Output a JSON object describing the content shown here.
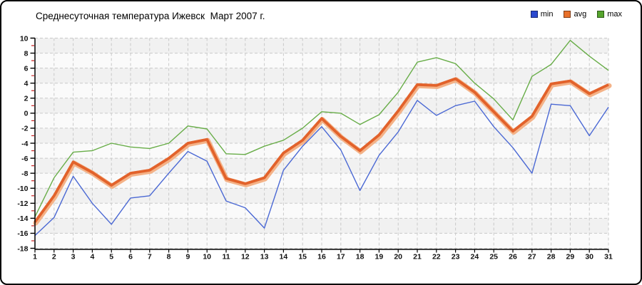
{
  "title": "Среднесуточная температура Ижевск  Март 2007 г.",
  "legend": {
    "items": [
      {
        "label": "min",
        "color": "#2b49cf"
      },
      {
        "label": "avg",
        "color": "#e8702a"
      },
      {
        "label": "max",
        "color": "#55a42d"
      }
    ]
  },
  "chart_data": {
    "type": "line",
    "title": "Среднесуточная температура Ижевск  Март 2007 г.",
    "xlabel": "",
    "ylabel": "",
    "x": [
      1,
      2,
      3,
      4,
      5,
      6,
      7,
      8,
      9,
      10,
      11,
      12,
      13,
      14,
      15,
      16,
      17,
      18,
      19,
      20,
      21,
      22,
      23,
      24,
      25,
      26,
      27,
      28,
      29,
      30,
      31
    ],
    "ylim": [
      -18,
      10
    ],
    "y_ticks": [
      10,
      8,
      6,
      4,
      2,
      0,
      -2,
      -4,
      -6,
      -8,
      -10,
      -12,
      -14,
      -16,
      -18
    ],
    "grid": true,
    "legend_position": "top-right",
    "series": [
      {
        "name": "min",
        "color": "#4a68d4",
        "width": 1.4,
        "values": [
          -16.3,
          -13.9,
          -8.4,
          -12.0,
          -14.8,
          -11.3,
          -11.0,
          -8.0,
          -5.1,
          -6.4,
          -11.7,
          -12.6,
          -15.3,
          -7.6,
          -4.4,
          -1.8,
          -4.9,
          -10.3,
          -5.6,
          -2.5,
          1.7,
          -0.3,
          1.0,
          1.6,
          -1.8,
          -4.6,
          -8.0,
          1.2,
          1.0,
          -3.0,
          0.8
        ]
      },
      {
        "name": "avg",
        "color": "#e2622b",
        "halo_color": "#f4b287",
        "width": 3.8,
        "values": [
          -14.5,
          -11.0,
          -6.5,
          -7.9,
          -9.6,
          -8.0,
          -7.6,
          -6.0,
          -4.0,
          -3.5,
          -8.7,
          -9.4,
          -8.6,
          -5.3,
          -3.6,
          -0.7,
          -3.1,
          -5.0,
          -2.9,
          0.3,
          3.8,
          3.7,
          4.6,
          2.8,
          0.2,
          -2.4,
          -0.4,
          3.9,
          4.3,
          2.6,
          3.8
        ]
      },
      {
        "name": "max",
        "color": "#68ad48",
        "width": 1.4,
        "values": [
          -13.8,
          -8.6,
          -5.2,
          -5.0,
          -4.0,
          -4.5,
          -4.7,
          -4.0,
          -1.7,
          -2.1,
          -5.4,
          -5.5,
          -4.4,
          -3.6,
          -2.0,
          0.2,
          0.0,
          -1.5,
          -0.2,
          2.8,
          6.8,
          7.4,
          6.6,
          4.0,
          1.9,
          -0.9,
          4.9,
          6.5,
          9.7,
          7.6,
          5.7
        ]
      }
    ],
    "style": {
      "plot_bg": "#f1f1f1",
      "plot_bg_alt": "#fafafa",
      "grid_color": "#c9c9c9",
      "axis_color": "#000000",
      "minor_tick_color": "#cc2222",
      "tick_label_color": "#111111"
    }
  }
}
